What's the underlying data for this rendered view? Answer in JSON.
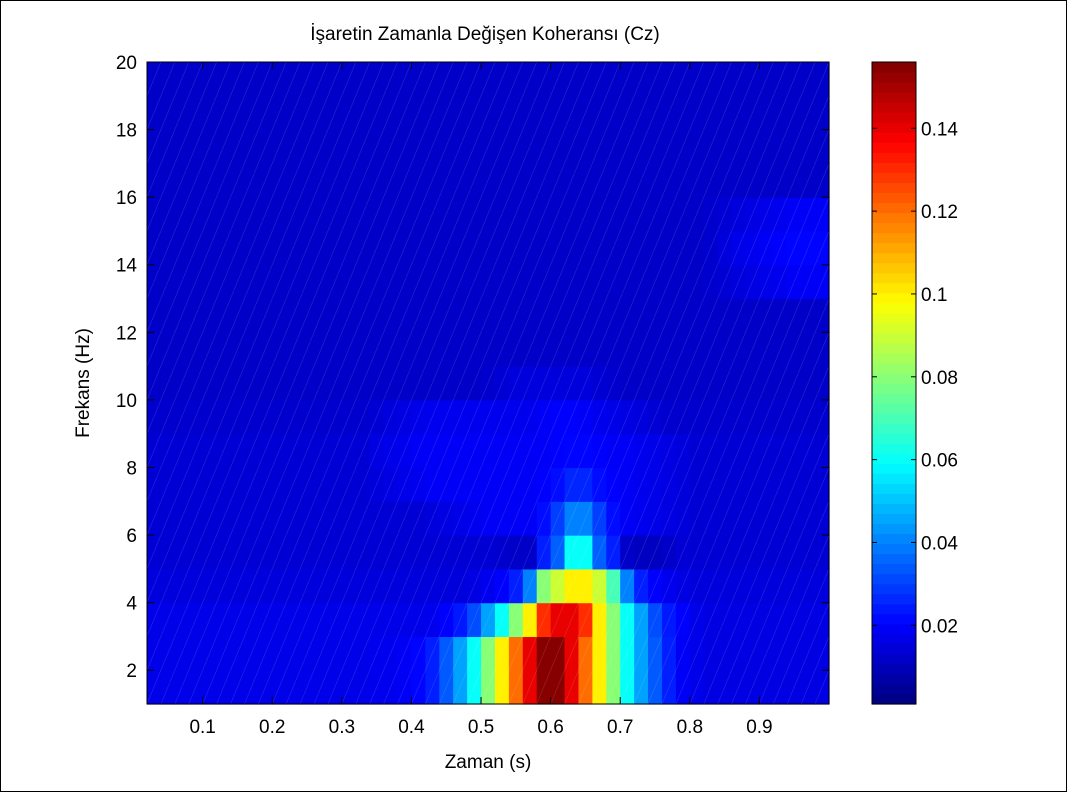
{
  "chart_data": {
    "type": "heatmap",
    "title": "İşaretin Zamanla Değişen Koheransı (Cz)",
    "xlabel": "Zaman (s)",
    "ylabel": "Frekans (Hz)",
    "xlim": [
      0.02,
      1.0
    ],
    "ylim": [
      1,
      20
    ],
    "x_ticks": [
      0.1,
      0.2,
      0.3,
      0.4,
      0.5,
      0.6,
      0.7,
      0.8,
      0.9
    ],
    "x_tick_labels": [
      "0.1",
      "0.2",
      "0.3",
      "0.4",
      "0.5",
      "0.6",
      "0.7",
      "0.8",
      "0.9"
    ],
    "y_ticks": [
      2,
      4,
      6,
      8,
      10,
      12,
      14,
      16,
      18,
      20
    ],
    "y_tick_labels": [
      "2",
      "4",
      "6",
      "8",
      "10",
      "12",
      "14",
      "16",
      "18",
      "20"
    ],
    "colormap": "jet",
    "grid": false,
    "colorbar": {
      "range": [
        0.001,
        0.156
      ],
      "ticks": [
        0.02,
        0.04,
        0.06,
        0.08,
        0.1,
        0.12,
        0.14
      ],
      "tick_labels": [
        "0.02",
        "0.04",
        "0.06",
        "0.08",
        "0.1",
        "0.12",
        "0.14"
      ],
      "placement": "right"
    },
    "time_bins": [
      0.02,
      0.04,
      0.06,
      0.08,
      0.1,
      0.12,
      0.14,
      0.16,
      0.18,
      0.2,
      0.22,
      0.24,
      0.26,
      0.28,
      0.3,
      0.32,
      0.34,
      0.36,
      0.38,
      0.4,
      0.42,
      0.44,
      0.46,
      0.48,
      0.5,
      0.52,
      0.54,
      0.56,
      0.58,
      0.6,
      0.62,
      0.64,
      0.66,
      0.68,
      0.7,
      0.72,
      0.74,
      0.76,
      0.78,
      0.8,
      0.82,
      0.84,
      0.86,
      0.88,
      0.9,
      0.92,
      0.94,
      0.96,
      0.98
    ],
    "frequency_bins": [
      1,
      2,
      3,
      4,
      5,
      6,
      7,
      8,
      9,
      10,
      11,
      12,
      13,
      14,
      15,
      16,
      17,
      18,
      19,
      20
    ],
    "values_by_frequency": [
      [
        0.017,
        0.017,
        0.017,
        0.017,
        0.017,
        0.017,
        0.017,
        0.017,
        0.017,
        0.017,
        0.017,
        0.017,
        0.017,
        0.017,
        0.017,
        0.017,
        0.018,
        0.018,
        0.019,
        0.021,
        0.025,
        0.034,
        0.045,
        0.06,
        0.08,
        0.1,
        0.12,
        0.14,
        0.155,
        0.155,
        0.14,
        0.12,
        0.1,
        0.08,
        0.06,
        0.045,
        0.034,
        0.025,
        0.019,
        0.017,
        0.016,
        0.016,
        0.016,
        0.016,
        0.016,
        0.016,
        0.016,
        0.016,
        0.016
      ],
      [
        0.017,
        0.017,
        0.017,
        0.017,
        0.017,
        0.017,
        0.017,
        0.017,
        0.017,
        0.017,
        0.017,
        0.017,
        0.017,
        0.017,
        0.017,
        0.017,
        0.018,
        0.018,
        0.019,
        0.021,
        0.025,
        0.034,
        0.045,
        0.06,
        0.08,
        0.1,
        0.12,
        0.14,
        0.155,
        0.155,
        0.14,
        0.12,
        0.1,
        0.08,
        0.06,
        0.045,
        0.034,
        0.025,
        0.019,
        0.017,
        0.016,
        0.016,
        0.016,
        0.016,
        0.016,
        0.016,
        0.016,
        0.016,
        0.016
      ],
      [
        0.017,
        0.017,
        0.017,
        0.017,
        0.017,
        0.017,
        0.017,
        0.017,
        0.017,
        0.017,
        0.017,
        0.017,
        0.017,
        0.017,
        0.017,
        0.017,
        0.017,
        0.017,
        0.017,
        0.017,
        0.018,
        0.02,
        0.024,
        0.032,
        0.045,
        0.06,
        0.08,
        0.1,
        0.13,
        0.14,
        0.14,
        0.13,
        0.1,
        0.08,
        0.06,
        0.045,
        0.032,
        0.024,
        0.02,
        0.017,
        0.016,
        0.016,
        0.016,
        0.016,
        0.016,
        0.016,
        0.016,
        0.016,
        0.016
      ],
      [
        0.015,
        0.015,
        0.015,
        0.015,
        0.015,
        0.015,
        0.015,
        0.015,
        0.015,
        0.015,
        0.015,
        0.015,
        0.015,
        0.015,
        0.015,
        0.015,
        0.015,
        0.015,
        0.015,
        0.015,
        0.015,
        0.015,
        0.015,
        0.016,
        0.018,
        0.02,
        0.025,
        0.04,
        0.08,
        0.09,
        0.1,
        0.1,
        0.09,
        0.07,
        0.04,
        0.025,
        0.02,
        0.018,
        0.016,
        0.015,
        0.015,
        0.015,
        0.015,
        0.015,
        0.015,
        0.015,
        0.015,
        0.015,
        0.015
      ],
      [
        0.014,
        0.014,
        0.014,
        0.014,
        0.014,
        0.014,
        0.014,
        0.014,
        0.014,
        0.014,
        0.014,
        0.014,
        0.014,
        0.014,
        0.014,
        0.014,
        0.014,
        0.014,
        0.014,
        0.014,
        0.014,
        0.014,
        0.014,
        0.014,
        0.014,
        0.013,
        0.012,
        0.012,
        0.025,
        0.035,
        0.06,
        0.06,
        0.035,
        0.025,
        0.012,
        0.011,
        0.011,
        0.012,
        0.014,
        0.014,
        0.014,
        0.014,
        0.014,
        0.014,
        0.014,
        0.014,
        0.014,
        0.014,
        0.014
      ],
      [
        0.014,
        0.014,
        0.014,
        0.014,
        0.014,
        0.014,
        0.014,
        0.014,
        0.014,
        0.014,
        0.014,
        0.014,
        0.014,
        0.014,
        0.014,
        0.014,
        0.014,
        0.014,
        0.014,
        0.014,
        0.015,
        0.016,
        0.017,
        0.018,
        0.019,
        0.019,
        0.019,
        0.019,
        0.022,
        0.03,
        0.04,
        0.04,
        0.03,
        0.022,
        0.019,
        0.018,
        0.017,
        0.016,
        0.015,
        0.014,
        0.014,
        0.014,
        0.014,
        0.014,
        0.014,
        0.014,
        0.014,
        0.014,
        0.014
      ],
      [
        0.014,
        0.014,
        0.014,
        0.014,
        0.014,
        0.014,
        0.014,
        0.014,
        0.014,
        0.014,
        0.014,
        0.014,
        0.014,
        0.014,
        0.014,
        0.014,
        0.015,
        0.016,
        0.017,
        0.018,
        0.019,
        0.019,
        0.019,
        0.019,
        0.019,
        0.019,
        0.019,
        0.019,
        0.02,
        0.022,
        0.026,
        0.026,
        0.022,
        0.02,
        0.019,
        0.018,
        0.017,
        0.016,
        0.015,
        0.014,
        0.014,
        0.014,
        0.014,
        0.014,
        0.014,
        0.014,
        0.014,
        0.014,
        0.014
      ],
      [
        0.014,
        0.014,
        0.014,
        0.014,
        0.014,
        0.014,
        0.014,
        0.014,
        0.014,
        0.014,
        0.014,
        0.014,
        0.014,
        0.014,
        0.014,
        0.014,
        0.016,
        0.017,
        0.018,
        0.019,
        0.019,
        0.019,
        0.019,
        0.019,
        0.019,
        0.019,
        0.019,
        0.019,
        0.019,
        0.02,
        0.021,
        0.021,
        0.02,
        0.019,
        0.019,
        0.018,
        0.017,
        0.016,
        0.015,
        0.014,
        0.014,
        0.014,
        0.014,
        0.014,
        0.014,
        0.014,
        0.014,
        0.014,
        0.014
      ],
      [
        0.013,
        0.013,
        0.013,
        0.013,
        0.013,
        0.013,
        0.013,
        0.013,
        0.013,
        0.013,
        0.013,
        0.013,
        0.013,
        0.013,
        0.013,
        0.013,
        0.014,
        0.015,
        0.016,
        0.017,
        0.018,
        0.018,
        0.018,
        0.018,
        0.018,
        0.018,
        0.018,
        0.018,
        0.019,
        0.02,
        0.02,
        0.019,
        0.018,
        0.017,
        0.016,
        0.015,
        0.014,
        0.013,
        0.013,
        0.013,
        0.013,
        0.013,
        0.013,
        0.013,
        0.013,
        0.013,
        0.013,
        0.013,
        0.013
      ],
      [
        0.012,
        0.012,
        0.012,
        0.012,
        0.012,
        0.012,
        0.012,
        0.012,
        0.012,
        0.012,
        0.012,
        0.012,
        0.012,
        0.012,
        0.012,
        0.012,
        0.012,
        0.012,
        0.012,
        0.012,
        0.012,
        0.012,
        0.012,
        0.012,
        0.013,
        0.014,
        0.015,
        0.015,
        0.015,
        0.015,
        0.015,
        0.015,
        0.014,
        0.013,
        0.012,
        0.012,
        0.012,
        0.012,
        0.012,
        0.012,
        0.012,
        0.012,
        0.012,
        0.012,
        0.012,
        0.012,
        0.012,
        0.012,
        0.012
      ],
      [
        0.012,
        0.012,
        0.012,
        0.012,
        0.012,
        0.012,
        0.012,
        0.012,
        0.012,
        0.012,
        0.012,
        0.012,
        0.012,
        0.012,
        0.012,
        0.012,
        0.012,
        0.012,
        0.012,
        0.012,
        0.012,
        0.012,
        0.012,
        0.012,
        0.012,
        0.012,
        0.012,
        0.012,
        0.012,
        0.012,
        0.012,
        0.012,
        0.012,
        0.012,
        0.012,
        0.012,
        0.012,
        0.012,
        0.012,
        0.012,
        0.012,
        0.012,
        0.012,
        0.012,
        0.012,
        0.012,
        0.012,
        0.012,
        0.012
      ],
      [
        0.012,
        0.012,
        0.012,
        0.012,
        0.012,
        0.012,
        0.012,
        0.012,
        0.012,
        0.012,
        0.012,
        0.012,
        0.012,
        0.012,
        0.012,
        0.012,
        0.012,
        0.012,
        0.012,
        0.012,
        0.012,
        0.012,
        0.012,
        0.012,
        0.012,
        0.012,
        0.012,
        0.012,
        0.012,
        0.012,
        0.012,
        0.012,
        0.012,
        0.012,
        0.012,
        0.012,
        0.012,
        0.012,
        0.012,
        0.012,
        0.012,
        0.012,
        0.012,
        0.012,
        0.012,
        0.012,
        0.012,
        0.012,
        0.012
      ],
      [
        0.012,
        0.012,
        0.012,
        0.012,
        0.012,
        0.012,
        0.012,
        0.012,
        0.012,
        0.012,
        0.012,
        0.012,
        0.012,
        0.012,
        0.012,
        0.012,
        0.012,
        0.012,
        0.012,
        0.012,
        0.012,
        0.012,
        0.012,
        0.012,
        0.012,
        0.012,
        0.012,
        0.012,
        0.012,
        0.012,
        0.012,
        0.012,
        0.012,
        0.012,
        0.012,
        0.012,
        0.012,
        0.012,
        0.012,
        0.012,
        0.013,
        0.014,
        0.015,
        0.016,
        0.017,
        0.018,
        0.019,
        0.019,
        0.019
      ],
      [
        0.012,
        0.012,
        0.012,
        0.012,
        0.012,
        0.012,
        0.012,
        0.012,
        0.012,
        0.012,
        0.012,
        0.012,
        0.012,
        0.012,
        0.012,
        0.012,
        0.012,
        0.012,
        0.012,
        0.012,
        0.012,
        0.012,
        0.012,
        0.012,
        0.012,
        0.012,
        0.012,
        0.012,
        0.012,
        0.012,
        0.012,
        0.012,
        0.012,
        0.012,
        0.012,
        0.012,
        0.012,
        0.012,
        0.012,
        0.012,
        0.013,
        0.015,
        0.017,
        0.018,
        0.019,
        0.02,
        0.021,
        0.021,
        0.021
      ],
      [
        0.012,
        0.012,
        0.012,
        0.012,
        0.012,
        0.012,
        0.012,
        0.012,
        0.012,
        0.012,
        0.012,
        0.012,
        0.012,
        0.012,
        0.012,
        0.012,
        0.012,
        0.012,
        0.012,
        0.012,
        0.012,
        0.012,
        0.012,
        0.012,
        0.012,
        0.012,
        0.012,
        0.012,
        0.012,
        0.012,
        0.012,
        0.012,
        0.012,
        0.012,
        0.012,
        0.012,
        0.012,
        0.012,
        0.012,
        0.012,
        0.013,
        0.014,
        0.015,
        0.016,
        0.017,
        0.018,
        0.019,
        0.019,
        0.019
      ],
      [
        0.012,
        0.012,
        0.012,
        0.012,
        0.012,
        0.012,
        0.012,
        0.012,
        0.012,
        0.012,
        0.012,
        0.012,
        0.012,
        0.012,
        0.012,
        0.012,
        0.012,
        0.012,
        0.012,
        0.012,
        0.012,
        0.012,
        0.012,
        0.012,
        0.012,
        0.012,
        0.012,
        0.012,
        0.012,
        0.012,
        0.012,
        0.012,
        0.012,
        0.012,
        0.012,
        0.012,
        0.012,
        0.012,
        0.012,
        0.012,
        0.012,
        0.012,
        0.012,
        0.012,
        0.012,
        0.012,
        0.012,
        0.012,
        0.012
      ],
      [
        0.012,
        0.012,
        0.012,
        0.012,
        0.012,
        0.012,
        0.012,
        0.012,
        0.012,
        0.012,
        0.012,
        0.012,
        0.012,
        0.012,
        0.012,
        0.012,
        0.012,
        0.012,
        0.012,
        0.012,
        0.012,
        0.012,
        0.012,
        0.012,
        0.012,
        0.012,
        0.012,
        0.012,
        0.012,
        0.012,
        0.012,
        0.012,
        0.012,
        0.012,
        0.012,
        0.012,
        0.012,
        0.012,
        0.012,
        0.012,
        0.012,
        0.012,
        0.012,
        0.012,
        0.012,
        0.012,
        0.012,
        0.012,
        0.012
      ],
      [
        0.012,
        0.012,
        0.012,
        0.012,
        0.012,
        0.012,
        0.012,
        0.012,
        0.012,
        0.012,
        0.012,
        0.012,
        0.012,
        0.012,
        0.012,
        0.012,
        0.012,
        0.012,
        0.012,
        0.012,
        0.012,
        0.012,
        0.012,
        0.012,
        0.012,
        0.012,
        0.012,
        0.012,
        0.012,
        0.012,
        0.012,
        0.012,
        0.012,
        0.012,
        0.012,
        0.012,
        0.012,
        0.012,
        0.012,
        0.012,
        0.012,
        0.012,
        0.012,
        0.012,
        0.012,
        0.012,
        0.012,
        0.012,
        0.012
      ],
      [
        0.012,
        0.012,
        0.012,
        0.012,
        0.012,
        0.012,
        0.012,
        0.012,
        0.012,
        0.012,
        0.012,
        0.012,
        0.012,
        0.012,
        0.012,
        0.012,
        0.012,
        0.012,
        0.012,
        0.012,
        0.012,
        0.012,
        0.012,
        0.012,
        0.012,
        0.012,
        0.012,
        0.012,
        0.012,
        0.012,
        0.012,
        0.012,
        0.012,
        0.012,
        0.012,
        0.012,
        0.012,
        0.012,
        0.012,
        0.012,
        0.012,
        0.012,
        0.012,
        0.012,
        0.012,
        0.012,
        0.012,
        0.012,
        0.012
      ],
      [
        0.012,
        0.012,
        0.012,
        0.012,
        0.012,
        0.012,
        0.012,
        0.012,
        0.012,
        0.012,
        0.012,
        0.012,
        0.012,
        0.012,
        0.012,
        0.012,
        0.012,
        0.012,
        0.012,
        0.012,
        0.012,
        0.012,
        0.012,
        0.012,
        0.012,
        0.012,
        0.012,
        0.012,
        0.012,
        0.012,
        0.012,
        0.012,
        0.012,
        0.012,
        0.012,
        0.012,
        0.012,
        0.012,
        0.012,
        0.012,
        0.012,
        0.012,
        0.012,
        0.012,
        0.012,
        0.012,
        0.012,
        0.012,
        0.012
      ]
    ]
  }
}
